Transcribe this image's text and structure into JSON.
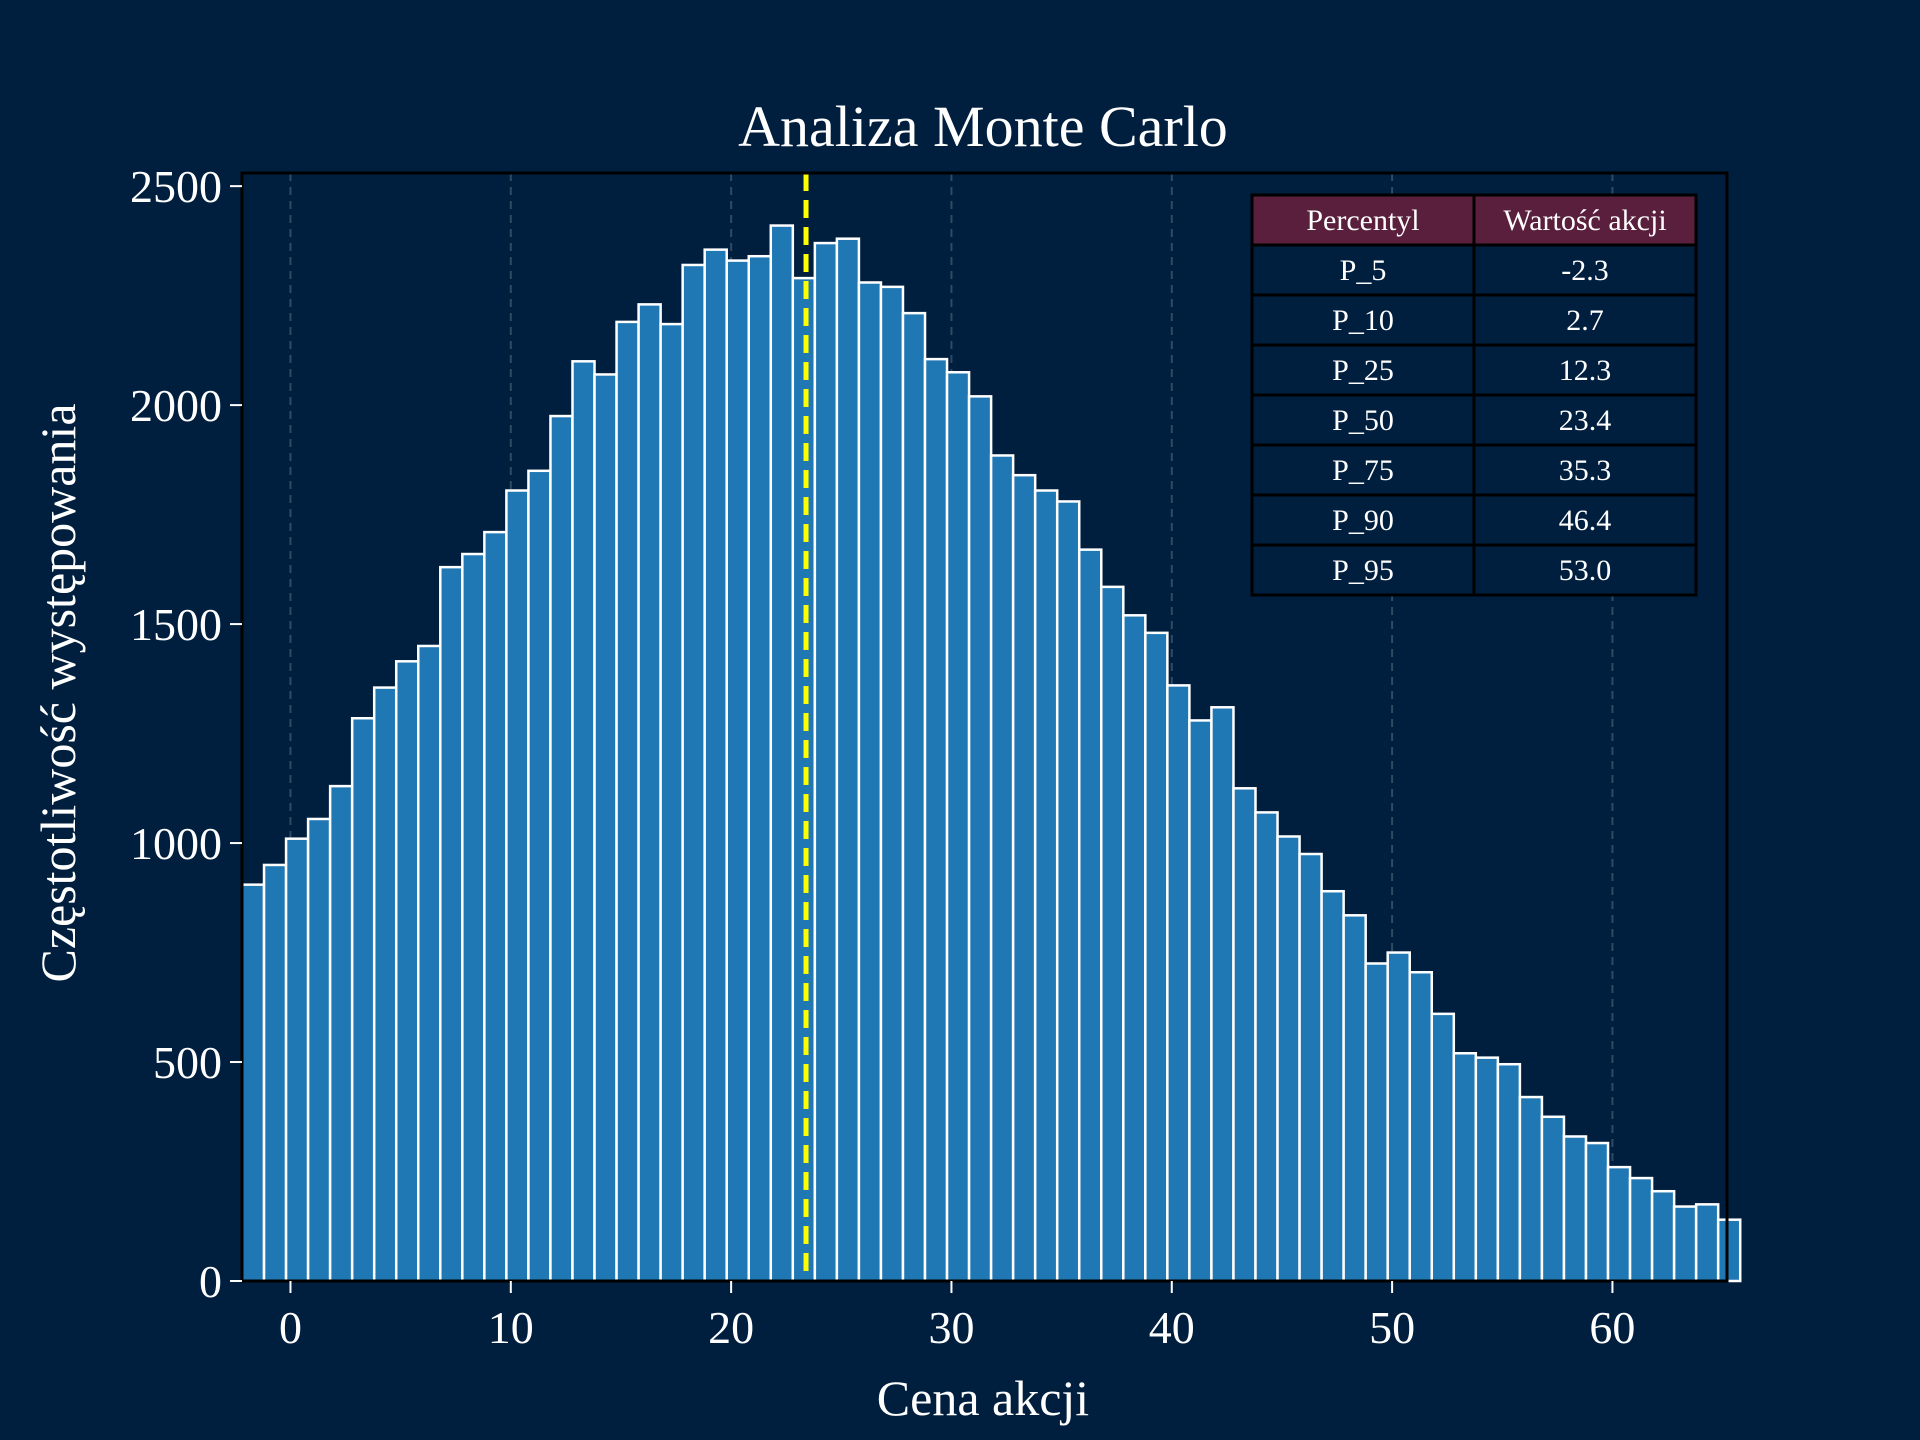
{
  "chart_data": {
    "type": "bar",
    "title": "Analiza Monte Carlo",
    "xlabel": "Cena akcji",
    "ylabel": "Częstotliwość występowania",
    "xlim": [
      -2.2,
      65.2
    ],
    "ylim": [
      0,
      2530
    ],
    "xticks": [
      0,
      10,
      20,
      30,
      40,
      50,
      60
    ],
    "yticks": [
      0,
      500,
      1000,
      1500,
      2000,
      2500
    ],
    "grid": "vertical dashed",
    "bin_start": -2.2,
    "bin_width": 1.0,
    "values": [
      905,
      950,
      1010,
      1055,
      1130,
      1285,
      1355,
      1415,
      1450,
      1630,
      1660,
      1710,
      1805,
      1850,
      1975,
      2100,
      2070,
      2190,
      2230,
      2185,
      2320,
      2355,
      2330,
      2340,
      2410,
      2290,
      2370,
      2380,
      2280,
      2270,
      2210,
      2105,
      2075,
      2020,
      1885,
      1840,
      1805,
      1780,
      1670,
      1585,
      1520,
      1480,
      1360,
      1280,
      1310,
      1125,
      1070,
      1015,
      975,
      890,
      835,
      725,
      750,
      705,
      610,
      520,
      510,
      495,
      420,
      375,
      330,
      315,
      260,
      235,
      205,
      170,
      175,
      140
    ],
    "median_line": 23.4,
    "colors": {
      "background": "#001f3f",
      "bar": "#1f77b4",
      "bar_edge": "#ffffff",
      "median": "#ffff00",
      "table_header": "#5a1f3c",
      "table_border": "#000000"
    },
    "table": {
      "headers": [
        "Percentyl",
        "Wartość akcji"
      ],
      "rows": [
        [
          "P_5",
          "-2.3"
        ],
        [
          "P_10",
          "2.7"
        ],
        [
          "P_25",
          "12.3"
        ],
        [
          "P_50",
          "23.4"
        ],
        [
          "P_75",
          "35.3"
        ],
        [
          "P_90",
          "46.4"
        ],
        [
          "P_95",
          "53.0"
        ]
      ]
    }
  }
}
